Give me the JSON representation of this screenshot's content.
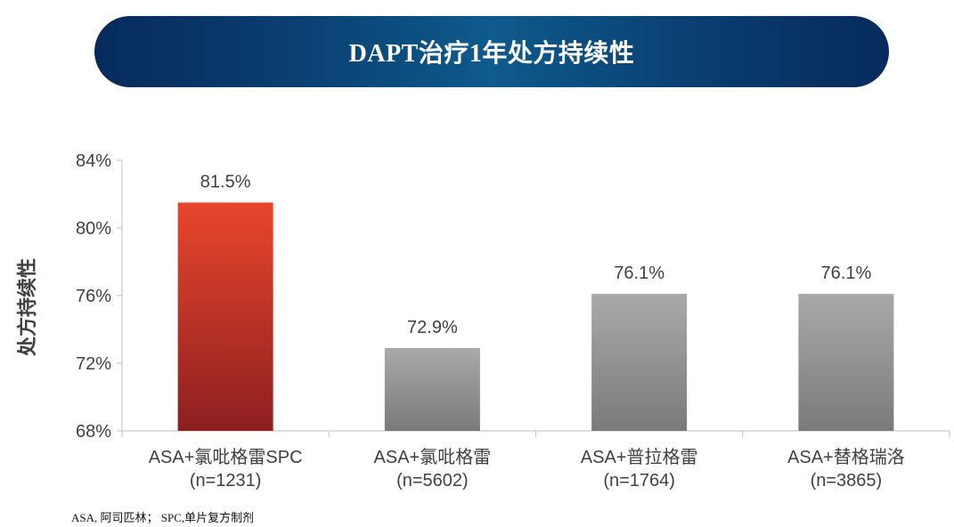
{
  "title": "DAPT治疗1年处方持续性",
  "footnote": "ASA, 阿司匹林； SPC,单片复方制剂",
  "chart_data": {
    "type": "bar",
    "ylabel": "处方持续性",
    "ylim": [
      68,
      84
    ],
    "yticks": [
      "68%",
      "72%",
      "76%",
      "80%",
      "84%"
    ],
    "ytick_values": [
      68,
      72,
      76,
      80,
      84
    ],
    "categories": [
      {
        "line1": "ASA+氯吡格雷SPC",
        "line2": "(n=1231)"
      },
      {
        "line1": "ASA+氯吡格雷",
        "line2": "(n=5602)"
      },
      {
        "line1": "ASA+普拉格雷",
        "line2": "(n=1764)"
      },
      {
        "line1": "ASA+替格瑞洛",
        "line2": "(n=3865)"
      }
    ],
    "values": [
      81.5,
      72.9,
      76.1,
      76.1
    ],
    "value_labels": [
      "81.5%",
      "72.9%",
      "76.1%",
      "76.1%"
    ],
    "grid": false,
    "colors": {
      "highlight_top": "#e9462c",
      "highlight_bottom": "#8c1f1f",
      "gray_top": "#a9a9a9",
      "gray_bottom": "#7a7a7a",
      "axis": "#bfbfbf",
      "text": "#404040"
    }
  }
}
